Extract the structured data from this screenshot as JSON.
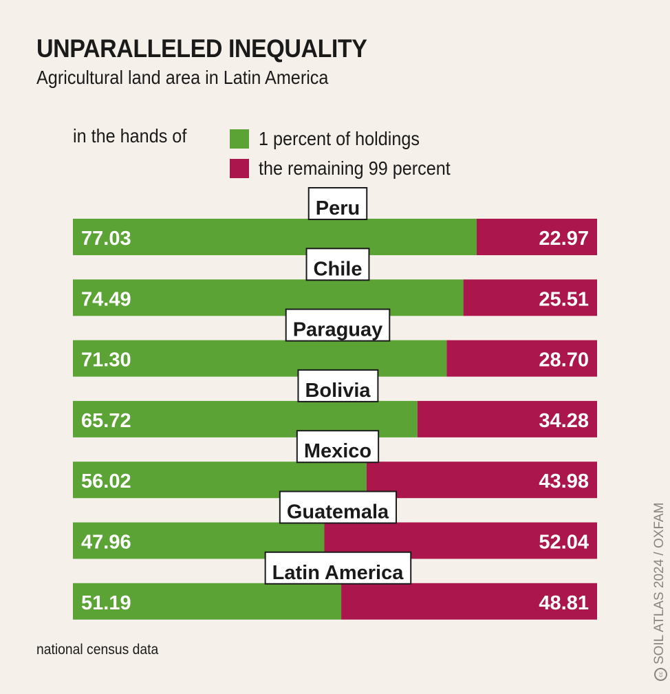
{
  "header": {
    "title": "UNPARALLELED INEQUALITY",
    "subtitle": "Agricultural land area in Latin America"
  },
  "legend": {
    "lead": "in the hands of",
    "items": [
      {
        "label": "1 percent of holdings",
        "color": "#5aa334"
      },
      {
        "label": "the remaining 99 percent",
        "color": "#ab174c"
      }
    ]
  },
  "footer": {
    "source": "national census data",
    "credit_icon": "cc-icon",
    "credit": "SOIL ATLAS 2024 / OXFAM"
  },
  "chart_data": {
    "type": "bar",
    "orientation": "horizontal-stacked-100",
    "title": "UNPARALLELED INEQUALITY",
    "subtitle": "Agricultural land area in Latin America",
    "xlabel": "",
    "ylabel": "",
    "xlim": [
      0,
      100
    ],
    "unit": "percent",
    "grid": false,
    "legend_position": "top-left",
    "categories": [
      "Peru",
      "Chile",
      "Paraguay",
      "Bolivia",
      "Mexico",
      "Guatemala",
      "Latin America"
    ],
    "series": [
      {
        "name": "1 percent of holdings",
        "color": "#5aa334",
        "values": [
          77.03,
          74.49,
          71.3,
          65.72,
          56.02,
          47.96,
          51.19
        ],
        "labels": [
          "77.03",
          "74.49",
          "71.30",
          "65.72",
          "56.02",
          "47.96",
          "51.19"
        ]
      },
      {
        "name": "the remaining 99 percent",
        "color": "#ab174c",
        "values": [
          22.97,
          25.51,
          28.7,
          34.28,
          43.98,
          52.04,
          48.81
        ],
        "labels": [
          "22.97",
          "25.51",
          "28.70",
          "34.28",
          "43.98",
          "52.04",
          "48.81"
        ]
      }
    ],
    "source": "national census data"
  }
}
